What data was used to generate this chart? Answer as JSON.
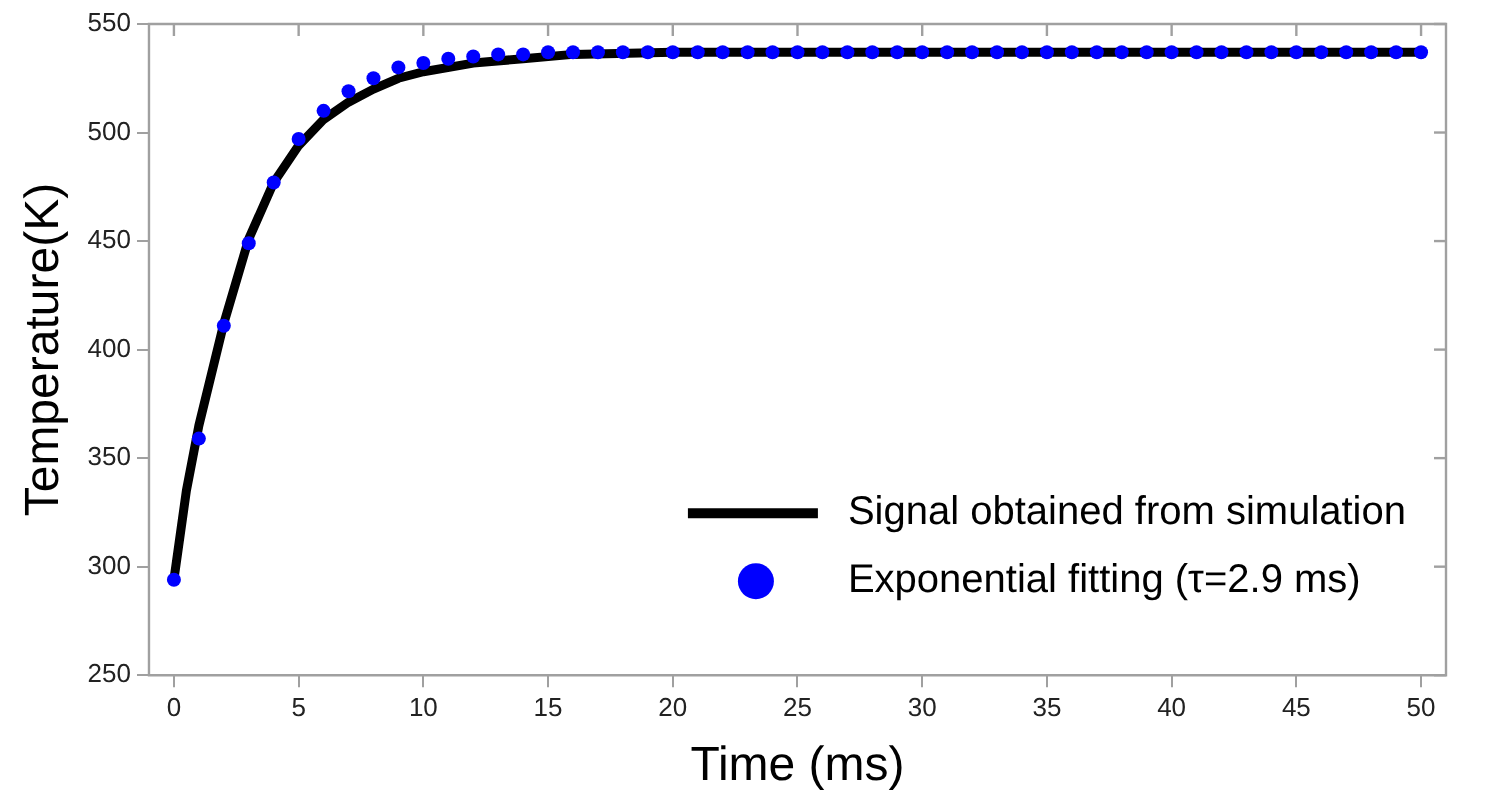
{
  "chart_data": {
    "type": "line",
    "xlabel": "Time (ms)",
    "ylabel": "Temperature(K)",
    "xlim": [
      -1,
      51
    ],
    "xticks": [
      0,
      5,
      10,
      15,
      20,
      25,
      30,
      35,
      40,
      45,
      50
    ],
    "ylim": [
      250,
      550
    ],
    "yticks": [
      250,
      300,
      350,
      400,
      450,
      500,
      550
    ],
    "grid": false,
    "legend": "bottom right",
    "series": [
      {
        "name": "Signal obtained from simulation",
        "color": "#000000",
        "marker": "none",
        "line_style": "solid",
        "x": [
          0,
          0.5,
          1,
          2,
          3,
          4,
          5,
          6,
          7,
          8,
          9,
          10,
          12,
          14,
          16,
          20,
          50
        ],
        "values": [
          294,
          335,
          365,
          412,
          451,
          477,
          494,
          506,
          514,
          520,
          525,
          528,
          532,
          534,
          536,
          537,
          537
        ]
      },
      {
        "name": "Exponential fitting (τ=2.9 ms)",
        "type": "scatter",
        "color": "#0000ff",
        "marker": "circle",
        "x": [
          0,
          1,
          2,
          3,
          4,
          5,
          6,
          7,
          8,
          9,
          10,
          11,
          12,
          13,
          14,
          15,
          16,
          17,
          18,
          19,
          20,
          21,
          22,
          23,
          24,
          25,
          26,
          27,
          28,
          29,
          30,
          31,
          32,
          33,
          34,
          35,
          36,
          37,
          38,
          39,
          40,
          41,
          42,
          43,
          44,
          45,
          46,
          47,
          48,
          49,
          50
        ],
        "values": [
          294,
          359,
          411,
          449,
          477,
          497,
          510,
          519,
          525,
          530,
          532,
          534,
          535,
          536,
          536,
          537,
          537,
          537,
          537,
          537,
          537,
          537,
          537,
          537,
          537,
          537,
          537,
          537,
          537,
          537,
          537,
          537,
          537,
          537,
          537,
          537,
          537,
          537,
          537,
          537,
          537,
          537,
          537,
          537,
          537,
          537,
          537,
          537,
          537,
          537,
          537
        ]
      }
    ]
  }
}
